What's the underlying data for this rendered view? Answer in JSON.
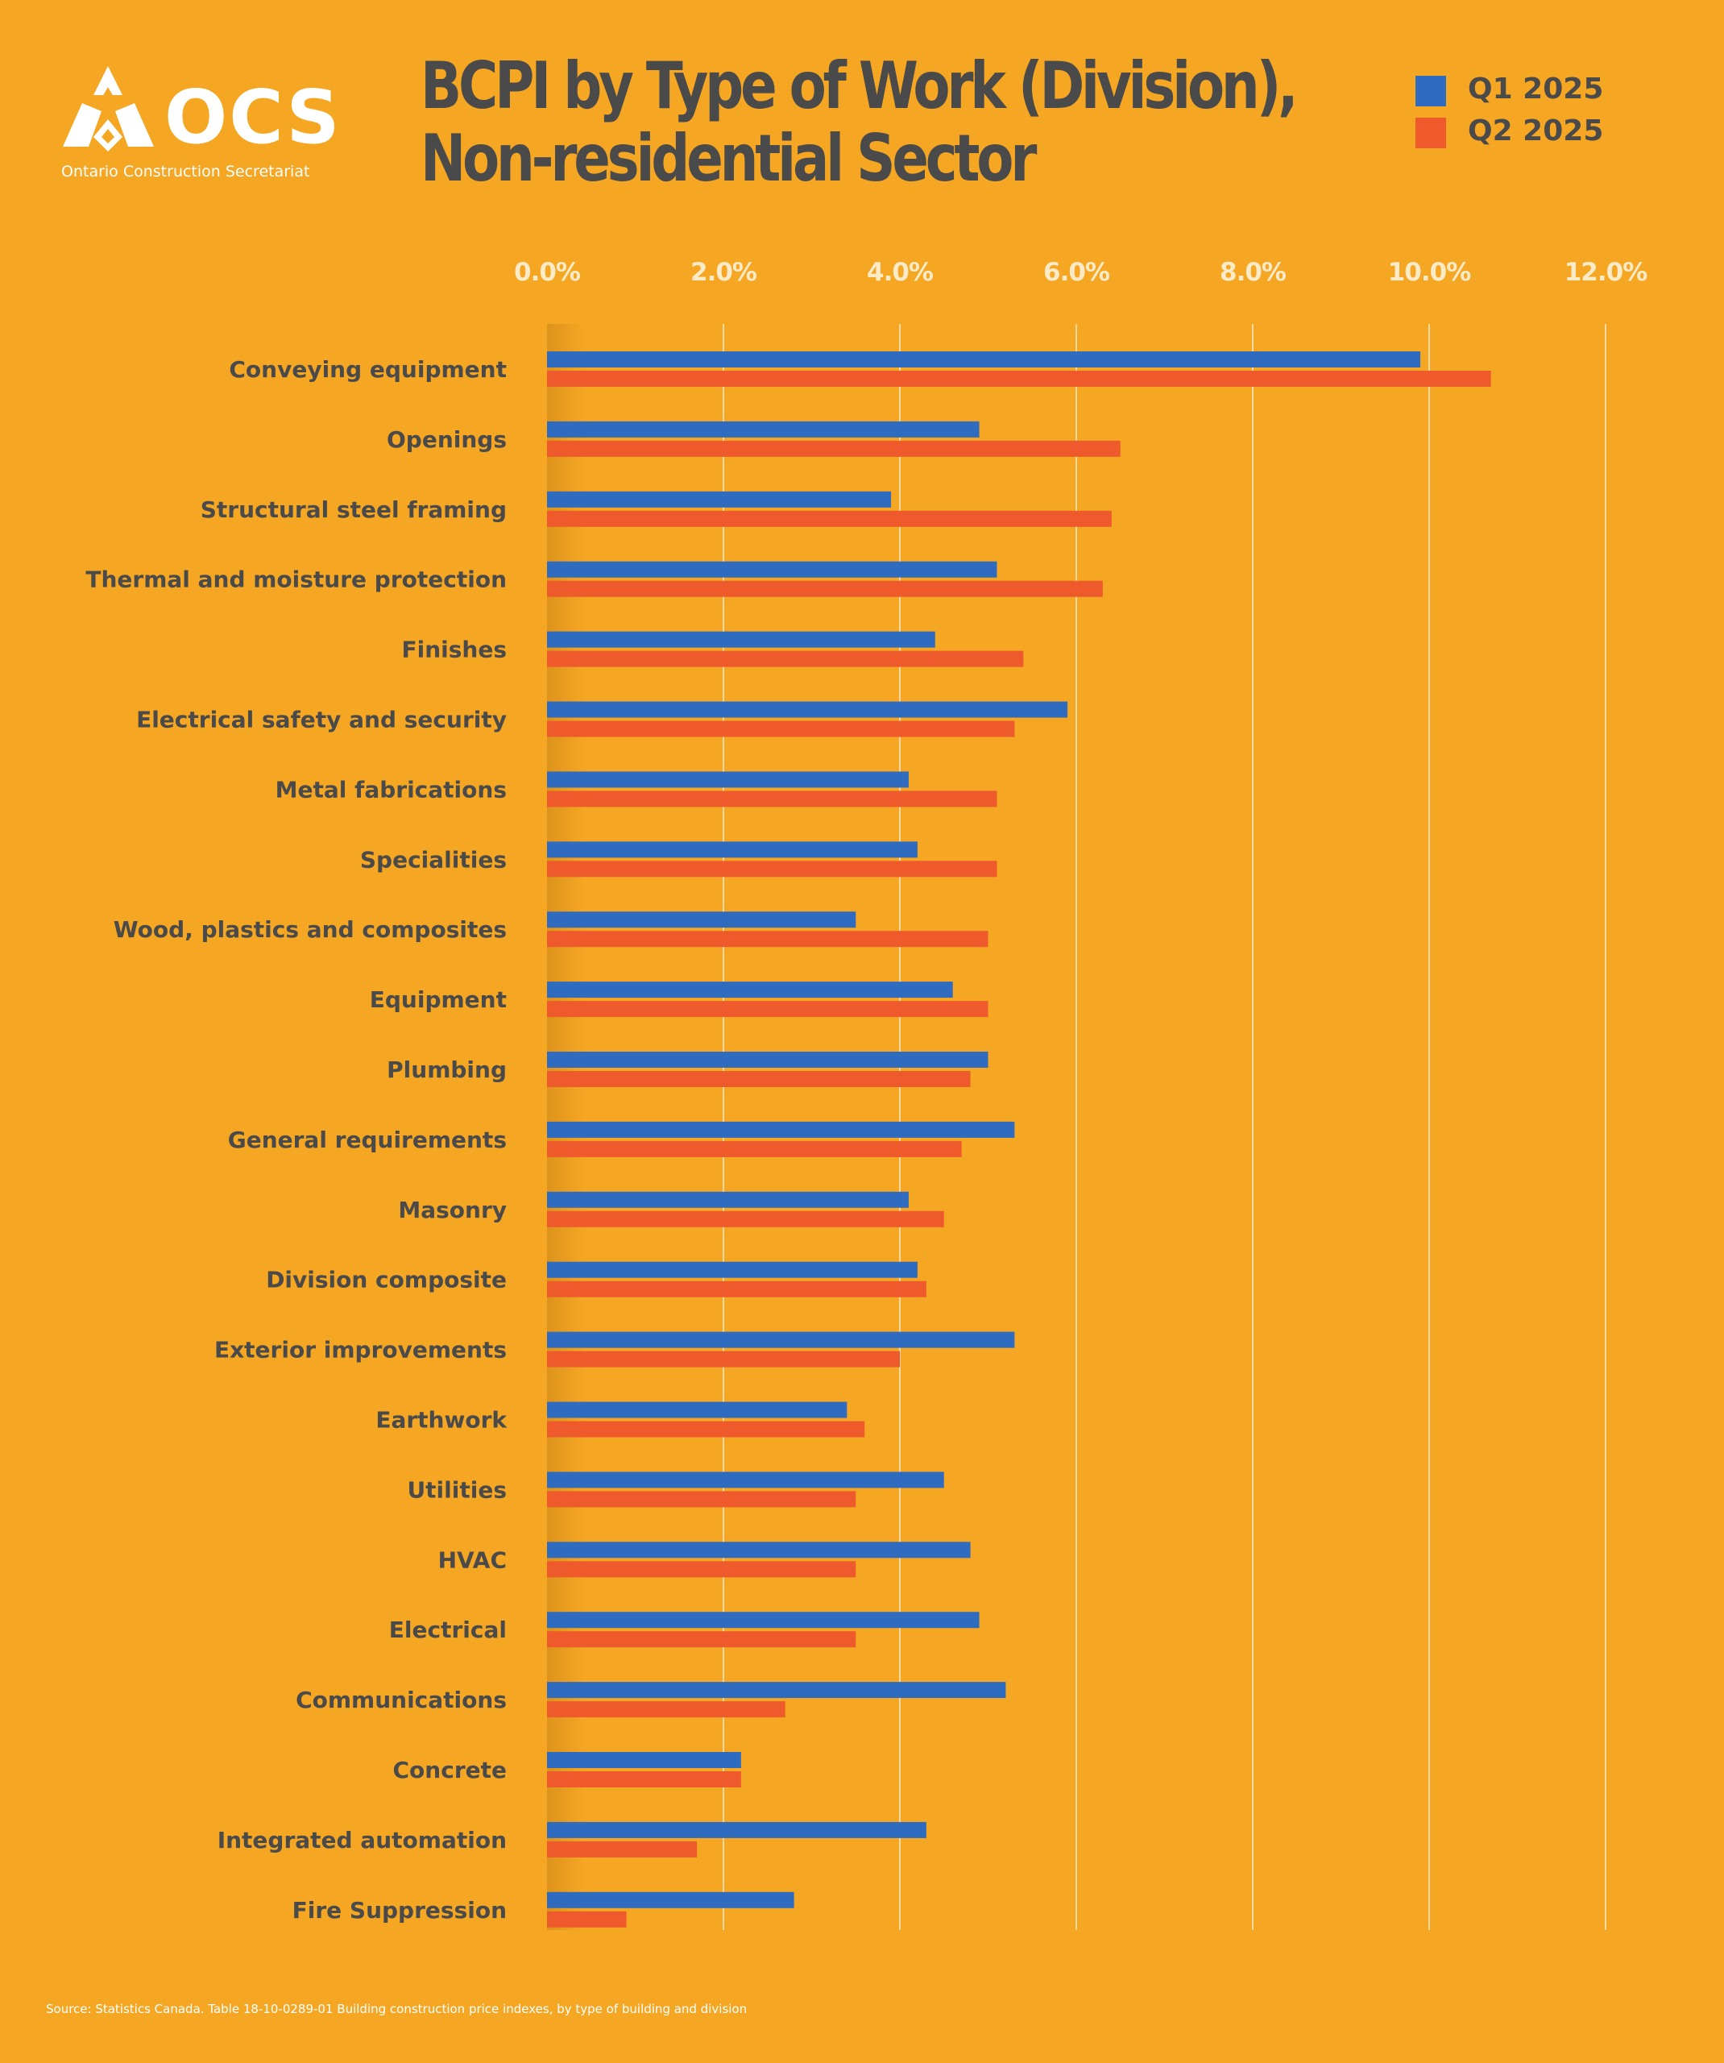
{
  "logo": {
    "text": "OCS",
    "subtitle": "Ontario Construction Secretariat"
  },
  "colors": {
    "background": "#F5A623",
    "q1": "#2F6CC0",
    "q2": "#EE5A2C",
    "text": "#4A4A4A",
    "tick": "#FDEBC8"
  },
  "chart_data": {
    "type": "bar",
    "orientation": "horizontal",
    "title": [
      "BCPI by Type of Work (Division),",
      "Non-residential Sector"
    ],
    "legend_position": "top-right",
    "grid": true,
    "xlim": [
      0,
      12
    ],
    "x_ticks": [
      "0.0%",
      "2.0%",
      "4.0%",
      "6.0%",
      "8.0%",
      "10.0%",
      "12.0%"
    ],
    "categories": [
      "Conveying equipment",
      "Openings",
      "Structural steel framing",
      "Thermal and moisture protection",
      "Finishes",
      "Electrical safety and security",
      "Metal fabrications",
      "Specialities",
      "Wood, plastics and composites",
      "Equipment",
      "Plumbing",
      "General requirements",
      "Masonry",
      "Division composite",
      "Exterior improvements",
      "Earthwork",
      "Utilities",
      "HVAC",
      "Electrical",
      "Communications",
      "Concrete",
      "Integrated automation",
      "Fire Suppression"
    ],
    "series": [
      {
        "name": "Q1 2025",
        "values": [
          9.9,
          4.9,
          3.9,
          5.1,
          4.4,
          5.9,
          4.1,
          4.2,
          3.5,
          4.6,
          5.0,
          5.3,
          4.1,
          4.2,
          5.3,
          3.4,
          4.5,
          4.8,
          4.9,
          5.2,
          2.2,
          4.3,
          2.8
        ]
      },
      {
        "name": "Q2 2025",
        "values": [
          10.7,
          6.5,
          6.4,
          6.3,
          5.4,
          5.3,
          5.1,
          5.1,
          5.0,
          5.0,
          4.8,
          4.7,
          4.5,
          4.3,
          4.0,
          3.6,
          3.5,
          3.5,
          3.5,
          2.7,
          2.2,
          1.7,
          0.9
        ]
      }
    ]
  },
  "source": "Source: Statistics Canada. Table 18-10-0289-01  Building construction price indexes, by type of building and division"
}
